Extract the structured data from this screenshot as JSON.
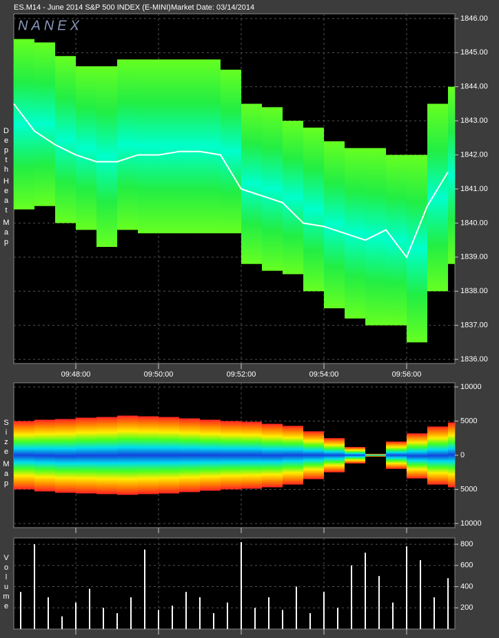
{
  "header": {
    "symbol": "ES.M14 - June 2014 S&P 500 INDEX (E-MINI)",
    "market_date": "Market Date: 03/14/2014"
  },
  "logo": "NANEX",
  "chart_data": [
    {
      "type": "heatmap",
      "y_label": [
        "Depth",
        "Heat",
        "Map"
      ],
      "x": [
        "09:46:30",
        "09:47:00",
        "09:47:30",
        "09:48:00",
        "09:48:30",
        "09:49:00",
        "09:49:30",
        "09:50:00",
        "09:50:30",
        "09:51:00",
        "09:51:30",
        "09:52:00",
        "09:52:30",
        "09:53:00",
        "09:53:30",
        "09:54:00",
        "09:54:30",
        "09:55:00",
        "09:55:30",
        "09:56:00",
        "09:56:30",
        "09:57:00"
      ],
      "upper": [
        1845.4,
        1845.3,
        1844.9,
        1844.6,
        1844.6,
        1844.8,
        1844.8,
        1844.8,
        1844.8,
        1844.8,
        1844.5,
        1843.5,
        1843.4,
        1843.0,
        1842.8,
        1842.4,
        1842.2,
        1842.2,
        1842.0,
        1842.0,
        1843.5,
        1844.0
      ],
      "lower": [
        1840.4,
        1840.5,
        1840.0,
        1839.8,
        1839.3,
        1839.8,
        1839.7,
        1839.7,
        1839.7,
        1839.7,
        1839.7,
        1838.8,
        1838.6,
        1838.5,
        1838.0,
        1837.5,
        1837.2,
        1837.0,
        1837.0,
        1836.5,
        1838.0,
        1838.8
      ],
      "trade": [
        1843.5,
        1842.7,
        1842.3,
        1842.0,
        1841.8,
        1841.8,
        1842.0,
        1842.0,
        1842.1,
        1842.1,
        1842.0,
        1841.0,
        1840.8,
        1840.6,
        1840.0,
        1839.9,
        1839.7,
        1839.5,
        1839.8,
        1839.0,
        1840.5,
        1841.5
      ],
      "color_scale": [
        "#66ff22",
        "#22ee44",
        "#00ffcc",
        "#22ee44",
        "#66ff22"
      ],
      "line_color": "#ffffff",
      "xlim": [
        "09:46:30",
        "09:57:10"
      ],
      "xticks": [
        "09:48:00",
        "09:50:00",
        "09:52:00",
        "09:54:00",
        "09:56:00"
      ],
      "ylim": [
        1835.88,
        1846.14
      ],
      "yticks": [
        {
          "value": 1846,
          "label": "1846.00"
        },
        {
          "value": 1845,
          "label": "1845.00"
        },
        {
          "value": 1844,
          "label": "1844.00"
        },
        {
          "value": 1843,
          "label": "1843.00"
        },
        {
          "value": 1842,
          "label": "1842.00"
        },
        {
          "value": 1841,
          "label": "1841.00"
        },
        {
          "value": 1840,
          "label": "1840.00"
        },
        {
          "value": 1839,
          "label": "1839.00"
        },
        {
          "value": 1838,
          "label": "1838.00"
        },
        {
          "value": 1837,
          "label": "1837.00"
        },
        {
          "value": 1836,
          "label": "1836.00"
        }
      ],
      "grid": true
    },
    {
      "type": "band",
      "y_label": [
        "Size",
        "Map"
      ],
      "x": [
        "09:46:30",
        "09:47:00",
        "09:47:30",
        "09:48:00",
        "09:48:30",
        "09:49:00",
        "09:49:30",
        "09:50:00",
        "09:50:30",
        "09:51:00",
        "09:51:30",
        "09:52:00",
        "09:52:30",
        "09:53:00",
        "09:53:30",
        "09:54:00",
        "09:54:30",
        "09:55:00",
        "09:55:30",
        "09:56:00",
        "09:56:30",
        "09:57:00"
      ],
      "upper": [
        5000,
        5200,
        5300,
        5500,
        5600,
        5800,
        5700,
        5600,
        5400,
        5200,
        5000,
        4900,
        4600,
        4300,
        3500,
        2500,
        1200,
        200,
        2000,
        3200,
        4200,
        4800
      ],
      "lower": [
        -5000,
        -5300,
        -5500,
        -5600,
        -5700,
        -5800,
        -5700,
        -5600,
        -5400,
        -5200,
        -5000,
        -4900,
        -4700,
        -4300,
        -3500,
        -2500,
        -1200,
        -200,
        -2000,
        -3400,
        -4300,
        -4700
      ],
      "color_scale": [
        "#ff2222",
        "#ff8800",
        "#ffee00",
        "#44ff22",
        "#00ddee",
        "#1144dd",
        "#00ddee",
        "#44ff22",
        "#ffee00",
        "#ff8800",
        "#ff2222"
      ],
      "xlim": [
        "09:46:30",
        "09:57:10"
      ],
      "ylim": [
        -10606,
        10606
      ],
      "yticks": [
        10000,
        5000,
        0,
        {
          "value": -5000,
          "label": "5000"
        },
        {
          "value": -10000,
          "label": "10000"
        }
      ],
      "grid": true
    },
    {
      "type": "bar",
      "y_label": [
        "Volume"
      ],
      "x": [
        "09:46:40",
        "09:47:00",
        "09:47:20",
        "09:47:40",
        "09:48:00",
        "09:48:20",
        "09:48:40",
        "09:49:00",
        "09:49:20",
        "09:49:40",
        "09:50:00",
        "09:50:20",
        "09:50:40",
        "09:51:00",
        "09:51:20",
        "09:51:40",
        "09:52:00",
        "09:52:20",
        "09:52:40",
        "09:53:00",
        "09:53:20",
        "09:53:40",
        "09:54:00",
        "09:54:20",
        "09:54:40",
        "09:55:00",
        "09:55:20",
        "09:55:40",
        "09:56:00",
        "09:56:20",
        "09:56:40",
        "09:57:00"
      ],
      "values": [
        350,
        800,
        300,
        120,
        250,
        380,
        200,
        150,
        300,
        750,
        180,
        220,
        350,
        300,
        150,
        250,
        820,
        200,
        300,
        180,
        400,
        150,
        350,
        200,
        600,
        720,
        500,
        250,
        780,
        650,
        300,
        480
      ],
      "color": "#ffffff",
      "xlim": [
        "09:46:30",
        "09:57:10"
      ],
      "ylim": [
        0,
        859
      ],
      "yticks": [
        800,
        600,
        400,
        200
      ],
      "grid": true
    }
  ]
}
